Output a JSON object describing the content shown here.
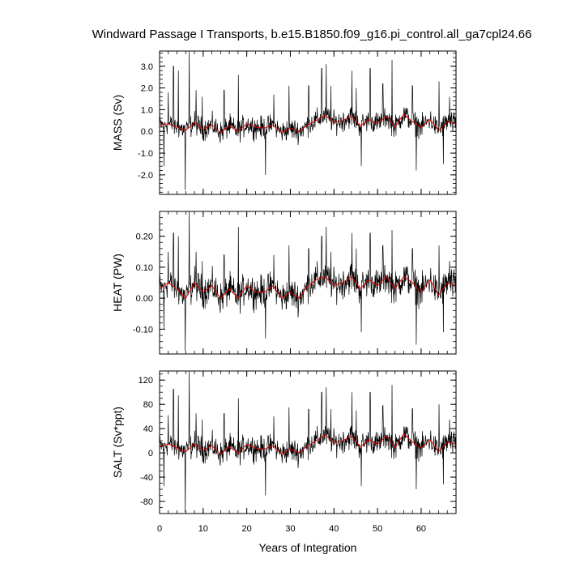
{
  "chart_data": {
    "type": "line",
    "title": "Windward Passage I Transports, b.e15.B1850.f09_g16.pi_control.all_ga7cpl24.66",
    "xlabel": "Years of Integration",
    "xlim": [
      0,
      68
    ],
    "xticks": [
      0,
      10,
      20,
      30,
      40,
      50,
      60
    ],
    "xtick_labels": [
      "0",
      "10",
      "20",
      "30",
      "40",
      "50",
      "60"
    ],
    "grid": false,
    "colors": {
      "raw": "#000000",
      "smooth": "#e00000"
    },
    "panels": [
      {
        "ylabel": "MASS (Sv)",
        "ylim": [
          -2.9,
          3.7
        ],
        "yticks": [
          -2.0,
          -1.0,
          0.0,
          1.0,
          2.0,
          3.0
        ],
        "ytick_labels": [
          "-2.0",
          "-1.0",
          "0.0",
          "1.0",
          "2.0",
          "3.0"
        ],
        "minor_step": 0.2,
        "spikes": [
          [
            1.0,
            -1.6
          ],
          [
            2.0,
            1.8
          ],
          [
            3.2,
            3.0
          ],
          [
            4.3,
            2.8
          ],
          [
            5.9,
            -2.7
          ],
          [
            6.8,
            3.7
          ],
          [
            8.4,
            1.9
          ],
          [
            9.8,
            1.6
          ],
          [
            14.8,
            1.9
          ],
          [
            18.1,
            2.6
          ],
          [
            24.3,
            -2.0
          ],
          [
            26.2,
            1.7
          ],
          [
            29.7,
            2.1
          ],
          [
            34.2,
            2.1
          ],
          [
            37.2,
            2.9
          ],
          [
            38.2,
            3.1
          ],
          [
            39.3,
            2.1
          ],
          [
            44.1,
            2.8
          ],
          [
            45.1,
            2.0
          ],
          [
            46.3,
            -1.6
          ],
          [
            48.3,
            2.9
          ],
          [
            51.2,
            2.2
          ],
          [
            53.3,
            3.3
          ],
          [
            58.0,
            2.1
          ],
          [
            58.9,
            -1.8
          ],
          [
            64.1,
            2.3
          ],
          [
            65.1,
            -1.5
          ],
          [
            66.5,
            1.6
          ]
        ],
        "smooth": [
          [
            0,
            0.3
          ],
          [
            2,
            0.35
          ],
          [
            4,
            0.2
          ],
          [
            6,
            0.05
          ],
          [
            8,
            0.4
          ],
          [
            10,
            0.1
          ],
          [
            12,
            0.3
          ],
          [
            14,
            -0.05
          ],
          [
            16,
            0.25
          ],
          [
            18,
            0.0
          ],
          [
            20,
            0.35
          ],
          [
            22,
            0.2
          ],
          [
            24,
            0.15
          ],
          [
            26,
            0.3
          ],
          [
            28,
            -0.05
          ],
          [
            30,
            0.15
          ],
          [
            32,
            0.0
          ],
          [
            34,
            0.3
          ],
          [
            36,
            0.5
          ],
          [
            38,
            0.75
          ],
          [
            40,
            0.4
          ],
          [
            42,
            0.5
          ],
          [
            44,
            0.7
          ],
          [
            46,
            0.25
          ],
          [
            48,
            0.55
          ],
          [
            50,
            0.35
          ],
          [
            52,
            0.7
          ],
          [
            54,
            0.2
          ],
          [
            56,
            0.8
          ],
          [
            58,
            0.45
          ],
          [
            60,
            0.2
          ],
          [
            62,
            0.55
          ],
          [
            64,
            0.05
          ],
          [
            66,
            0.45
          ],
          [
            68,
            0.35
          ]
        ]
      },
      {
        "ylabel": "HEAT (PW)",
        "ylim": [
          -0.18,
          0.28
        ],
        "yticks": [
          -0.1,
          0.0,
          0.1,
          0.2
        ],
        "ytick_labels": [
          "-0.10",
          "0.00",
          "0.10",
          "0.20"
        ],
        "minor_step": 0.02,
        "spikes": [
          [
            1.0,
            -0.1
          ],
          [
            2.0,
            0.15
          ],
          [
            3.2,
            0.21
          ],
          [
            4.3,
            0.2
          ],
          [
            5.9,
            -0.17
          ],
          [
            6.8,
            0.28
          ],
          [
            8.4,
            0.15
          ],
          [
            9.8,
            0.12
          ],
          [
            14.8,
            0.14
          ],
          [
            18.1,
            0.23
          ],
          [
            24.3,
            -0.13
          ],
          [
            26.2,
            0.14
          ],
          [
            29.7,
            0.17
          ],
          [
            34.2,
            0.16
          ],
          [
            37.2,
            0.2
          ],
          [
            38.2,
            0.23
          ],
          [
            39.3,
            0.15
          ],
          [
            44.1,
            0.21
          ],
          [
            45.1,
            0.16
          ],
          [
            46.3,
            -0.11
          ],
          [
            48.3,
            0.21
          ],
          [
            51.2,
            0.17
          ],
          [
            53.3,
            0.22
          ],
          [
            58.0,
            0.16
          ],
          [
            58.9,
            -0.15
          ],
          [
            64.1,
            0.17
          ],
          [
            65.1,
            -0.11
          ],
          [
            66.5,
            0.12
          ]
        ],
        "smooth": [
          [
            0,
            0.03
          ],
          [
            2,
            0.05
          ],
          [
            4,
            0.03
          ],
          [
            6,
            0.0
          ],
          [
            8,
            0.05
          ],
          [
            10,
            0.02
          ],
          [
            12,
            0.04
          ],
          [
            14,
            0.0
          ],
          [
            16,
            0.03
          ],
          [
            18,
            0.0
          ],
          [
            20,
            0.04
          ],
          [
            22,
            0.02
          ],
          [
            24,
            0.02
          ],
          [
            26,
            0.04
          ],
          [
            28,
            0.0
          ],
          [
            30,
            0.02
          ],
          [
            32,
            0.0
          ],
          [
            34,
            0.04
          ],
          [
            36,
            0.06
          ],
          [
            38,
            0.07
          ],
          [
            40,
            0.04
          ],
          [
            42,
            0.05
          ],
          [
            44,
            0.07
          ],
          [
            46,
            0.03
          ],
          [
            48,
            0.06
          ],
          [
            50,
            0.04
          ],
          [
            52,
            0.07
          ],
          [
            54,
            0.03
          ],
          [
            56,
            0.07
          ],
          [
            58,
            0.05
          ],
          [
            60,
            0.02
          ],
          [
            62,
            0.06
          ],
          [
            64,
            0.01
          ],
          [
            66,
            0.05
          ],
          [
            68,
            0.04
          ]
        ]
      },
      {
        "ylabel": "SALT (Sv*ppt)",
        "ylim": [
          -100,
          135
        ],
        "yticks": [
          -80,
          -40,
          0,
          40,
          80,
          120
        ],
        "ytick_labels": [
          "-80",
          "-40",
          "0",
          "40",
          "80",
          "120"
        ],
        "minor_step": 10,
        "spikes": [
          [
            1.0,
            -55
          ],
          [
            2.0,
            62
          ],
          [
            3.2,
            105
          ],
          [
            4.3,
            95
          ],
          [
            5.9,
            -98
          ],
          [
            6.8,
            135
          ],
          [
            8.4,
            65
          ],
          [
            9.8,
            55
          ],
          [
            14.8,
            65
          ],
          [
            18.1,
            90
          ],
          [
            24.3,
            -70
          ],
          [
            26.2,
            60
          ],
          [
            29.7,
            75
          ],
          [
            34.2,
            72
          ],
          [
            37.2,
            100
          ],
          [
            38.2,
            108
          ],
          [
            39.3,
            72
          ],
          [
            44.1,
            100
          ],
          [
            45.1,
            70
          ],
          [
            46.3,
            -55
          ],
          [
            48.3,
            100
          ],
          [
            51.2,
            78
          ],
          [
            53.3,
            112
          ],
          [
            58.0,
            73
          ],
          [
            58.9,
            -60
          ],
          [
            64.1,
            80
          ],
          [
            65.1,
            -52
          ],
          [
            66.5,
            55
          ]
        ],
        "smooth": [
          [
            0,
            10
          ],
          [
            2,
            15
          ],
          [
            4,
            8
          ],
          [
            6,
            2
          ],
          [
            8,
            15
          ],
          [
            10,
            4
          ],
          [
            12,
            12
          ],
          [
            14,
            -2
          ],
          [
            16,
            10
          ],
          [
            18,
            0
          ],
          [
            20,
            14
          ],
          [
            22,
            8
          ],
          [
            24,
            6
          ],
          [
            26,
            12
          ],
          [
            28,
            -2
          ],
          [
            30,
            6
          ],
          [
            32,
            0
          ],
          [
            34,
            12
          ],
          [
            36,
            20
          ],
          [
            38,
            30
          ],
          [
            40,
            16
          ],
          [
            42,
            20
          ],
          [
            44,
            28
          ],
          [
            46,
            10
          ],
          [
            48,
            22
          ],
          [
            50,
            14
          ],
          [
            52,
            28
          ],
          [
            54,
            8
          ],
          [
            56,
            32
          ],
          [
            58,
            18
          ],
          [
            60,
            8
          ],
          [
            62,
            22
          ],
          [
            64,
            2
          ],
          [
            66,
            18
          ],
          [
            68,
            14
          ]
        ]
      }
    ]
  }
}
